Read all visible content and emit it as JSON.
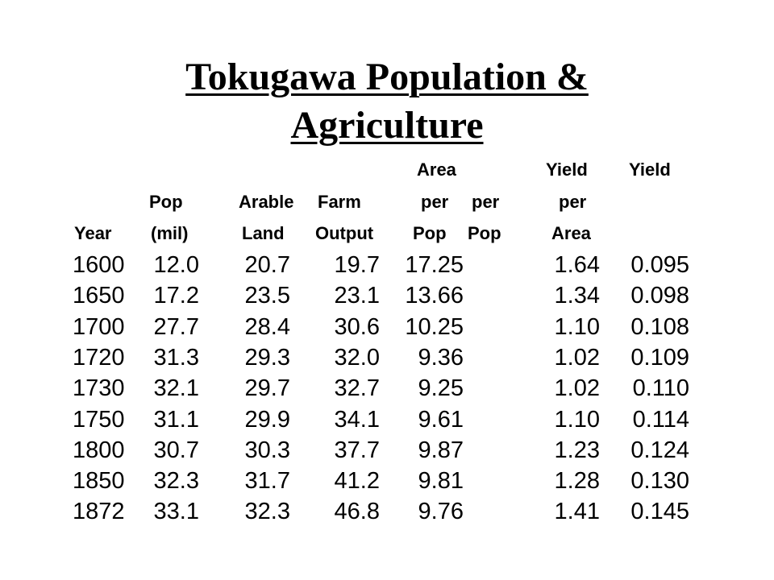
{
  "title": {
    "line1": "Tokugawa Population &",
    "line2": "Agriculture"
  },
  "headers": {
    "area_row1": "Area",
    "yield_row1_a": "Yield",
    "yield_row1_b": "Yield",
    "pop_row2": "Pop",
    "arable_row2": "Arable",
    "farm_row2": "Farm",
    "per_row2_a": "per",
    "per_row2_b": "per",
    "per_row2_c": "per",
    "year_row3": "Year",
    "mil_row3": "(mil)",
    "land_row3": "Land",
    "output_row3": "Output",
    "pop_row3_a": "Pop",
    "pop_row3_b": "Pop",
    "area_row3": "Area"
  },
  "rows": [
    {
      "year": "1600",
      "pop": "12.0",
      "land": "20.7",
      "output": "19.7",
      "area_per_pop": "17.25",
      "yield_per_pop": "1.64",
      "yield_per_area": "0.095"
    },
    {
      "year": "1650",
      "pop": "17.2",
      "land": "23.5",
      "output": "23.1",
      "area_per_pop": "13.66",
      "yield_per_pop": "1.34",
      "yield_per_area": "0.098"
    },
    {
      "year": "1700",
      "pop": "27.7",
      "land": "28.4",
      "output": "30.6",
      "area_per_pop": "10.25",
      "yield_per_pop": "1.10",
      "yield_per_area": "0.108"
    },
    {
      "year": "1720",
      "pop": "31.3",
      "land": "29.3",
      "output": "32.0",
      "area_per_pop": "9.36",
      "yield_per_pop": "1.02",
      "yield_per_area": "0.109"
    },
    {
      "year": "1730",
      "pop": "32.1",
      "land": "29.7",
      "output": "32.7",
      "area_per_pop": "9.25",
      "yield_per_pop": "1.02",
      "yield_per_area": "0.110"
    },
    {
      "year": "1750",
      "pop": "31.1",
      "land": "29.9",
      "output": "34.1",
      "area_per_pop": "9.61",
      "yield_per_pop": "1.10",
      "yield_per_area": "0.114"
    },
    {
      "year": "1800",
      "pop": "30.7",
      "land": "30.3",
      "output": "37.7",
      "area_per_pop": "9.87",
      "yield_per_pop": "1.23",
      "yield_per_area": "0.124"
    },
    {
      "year": "1850",
      "pop": "32.3",
      "land": "31.7",
      "output": "41.2",
      "area_per_pop": "9.81",
      "yield_per_pop": "1.28",
      "yield_per_area": "0.130"
    },
    {
      "year": "1872",
      "pop": "33.1",
      "land": "32.3",
      "output": "46.8",
      "area_per_pop": "9.76",
      "yield_per_pop": "1.41",
      "yield_per_area": "0.145"
    }
  ]
}
